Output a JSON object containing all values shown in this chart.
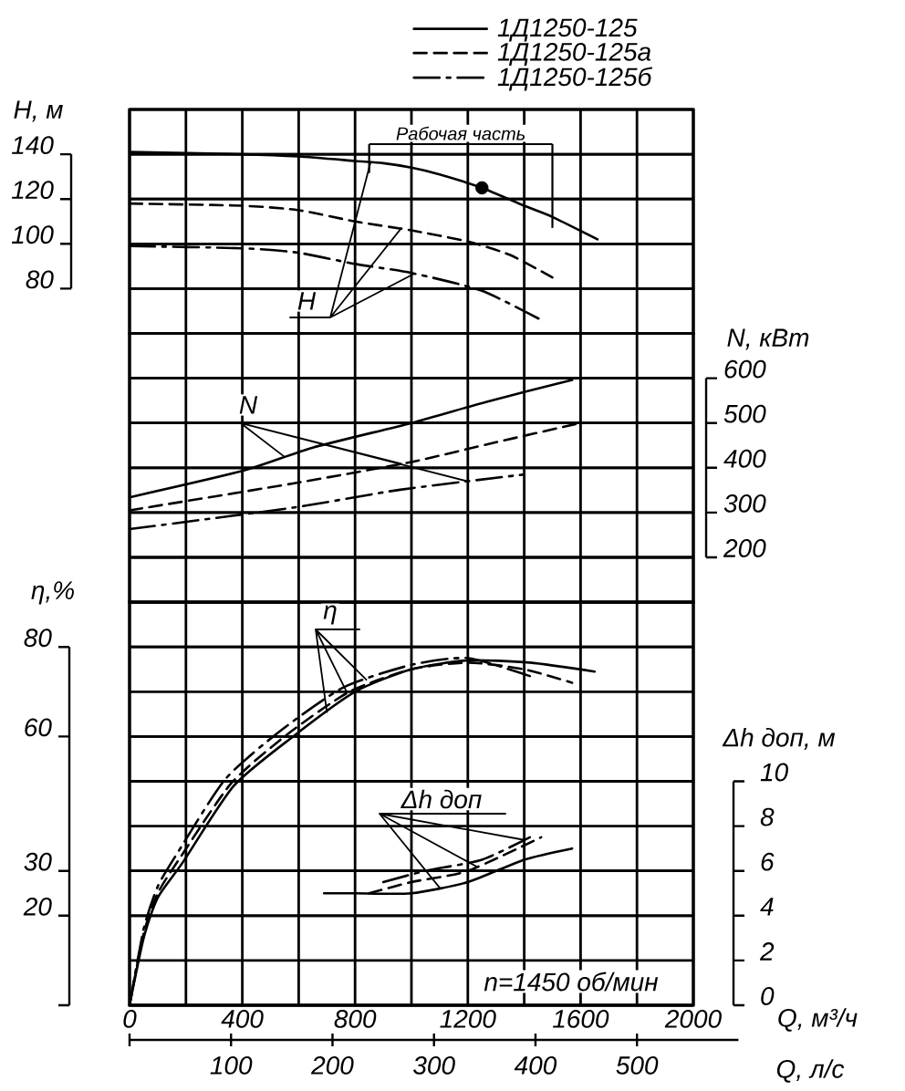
{
  "chart_data": [
    {
      "type": "line",
      "ylabel": "H, м",
      "xlim": [
        0,
        2000
      ],
      "xticks": [
        0,
        {
          "value": 200,
          "label": null
        },
        400,
        {
          "value": 600,
          "label": null
        },
        800,
        {
          "value": 1000,
          "label": null
        },
        1200,
        {
          "value": 1400,
          "label": null
        },
        1600,
        {
          "value": 1800,
          "label": null
        },
        2000
      ],
      "ylim": [
        60,
        160
      ],
      "yticks": [
        80,
        100,
        120,
        140
      ],
      "grid": true,
      "legend": "top",
      "tick_labels": "y",
      "series": [
        {
          "name": "1Д1250-125",
          "color": "#000000",
          "line_style": "solid",
          "x": [
            0,
            400,
            600,
            800,
            900,
            1000,
            1100,
            1250,
            1400,
            1500,
            1660
          ],
          "values": [
            141,
            140,
            139,
            137,
            136,
            134,
            131,
            125,
            117,
            112,
            102
          ]
        },
        {
          "name": "1Д1250-125а",
          "color": "#000000",
          "line_style": "dashed",
          "x": [
            0,
            400,
            600,
            800,
            1000,
            1200,
            1350,
            1500
          ],
          "values": [
            118,
            117,
            115,
            110,
            106,
            101,
            95,
            85
          ]
        },
        {
          "name": "1Д1250-125б",
          "color": "#000000",
          "line_style": "dashdot",
          "x": [
            0,
            400,
            600,
            800,
            1000,
            1250,
            1460
          ],
          "values": [
            99,
            98,
            96,
            91,
            87,
            79,
            66
          ]
        },
        {
          "type": "scatter",
          "marker": "circle",
          "color": "#000000",
          "x": [
            1250
          ],
          "values": [
            125
          ]
        }
      ],
      "ref_lines": [
        {
          "axis": "x",
          "value": 850
        },
        {
          "axis": "x",
          "value": 1500
        }
      ],
      "annotations": [
        "Рабочая часть",
        {
          "text": "H",
          "x": 964,
          "y": 107
        }
      ]
    },
    {
      "type": "line",
      "ylabel": "N, кВт",
      "xlim": [
        0,
        2000
      ],
      "xticks": [
        0,
        {
          "value": 200,
          "label": null
        },
        400,
        {
          "value": 600,
          "label": null
        },
        800,
        {
          "value": 1000,
          "label": null
        },
        1200,
        {
          "value": 1400,
          "label": null
        },
        1600,
        {
          "value": 1800,
          "label": null
        },
        2000
      ],
      "ylim": [
        100,
        700
      ],
      "yticks": [
        200,
        300,
        400,
        500,
        600
      ],
      "grid": true,
      "tick_labels": "y",
      "series": [
        {
          "color": "#000000",
          "line_style": "solid",
          "x": [
            0,
            400,
            650,
            1000,
            1270,
            1570
          ],
          "values": [
            334,
            393,
            445,
            500,
            548,
            596
          ]
        },
        {
          "color": "#000000",
          "line_style": "dashed",
          "x": [
            0,
            580,
            1000,
            1300,
            1600
          ],
          "values": [
            305,
            365,
            413,
            457,
            500
          ]
        },
        {
          "color": "#000000",
          "line_style": "dashdot",
          "x": [
            0,
            580,
            960,
            1400
          ],
          "values": [
            263,
            311,
            351,
            385
          ]
        }
      ],
      "annotations": [
        {
          "text": "N",
          "x": 964,
          "y": 409
        }
      ]
    },
    {
      "type": "line",
      "xlabel": "Q, м³/ч",
      "x2label": "Q, л/с",
      "ylabel": "η,%",
      "y2label": "Δh доп, м",
      "xlim": [
        0,
        2000
      ],
      "xticks": [
        0,
        {
          "value": 200,
          "label": null
        },
        400,
        {
          "value": 600,
          "label": null
        },
        800,
        {
          "value": 1000,
          "label": null
        },
        1200,
        {
          "value": 1400,
          "label": null
        },
        1600,
        {
          "value": 1800,
          "label": null
        },
        2000
      ],
      "x2lim": [
        0,
        600
      ],
      "x2ticks": [
        {
          "value": 0,
          "label": null
        },
        100,
        200,
        300,
        400,
        500
      ],
      "ylim": [
        0,
        90
      ],
      "yticks": [
        {
          "value": 0,
          "label": null
        },
        20,
        30,
        60,
        80
      ],
      "y2lim": [
        0,
        18
      ],
      "y2ticks": [
        0,
        2,
        4,
        6,
        8,
        10
      ],
      "grid": true,
      "series": [
        {
          "color": "#000000",
          "line_style": "solid",
          "x": [
            0,
            50,
            100,
            190,
            370,
            580,
            800,
            1000,
            1200,
            1420,
            1650
          ],
          "values": [
            0,
            15,
            24,
            32,
            49,
            60,
            70,
            75,
            77,
            76.5,
            74.5
          ]
        },
        {
          "color": "#000000",
          "line_style": "dashed",
          "x": [
            0,
            50,
            100,
            180,
            360,
            560,
            780,
            1000,
            1200,
            1400,
            1570
          ],
          "values": [
            0,
            16,
            25,
            33,
            49.5,
            60.5,
            70,
            75,
            76.5,
            75,
            72
          ]
        },
        {
          "color": "#000000",
          "line_style": "dashdot",
          "x": [
            0,
            50,
            100,
            170,
            340,
            540,
            760,
            1000,
            1200,
            1420
          ],
          "values": [
            0,
            17,
            26.5,
            34,
            50.5,
            61.5,
            71,
            76,
            77.5,
            73.5
          ]
        },
        {
          "color": "#000000",
          "line_style": "solid",
          "axis": "y2",
          "x": [
            690,
            800,
            1000,
            1200,
            1400,
            1570
          ],
          "values": [
            5,
            5,
            5,
            5.5,
            6.5,
            7
          ]
        },
        {
          "color": "#000000",
          "line_style": "dashed",
          "axis": "y2",
          "x": [
            850,
            1000,
            1200,
            1460
          ],
          "values": [
            5,
            5.5,
            6,
            7.5
          ]
        },
        {
          "color": "#000000",
          "line_style": "dashdot",
          "axis": "y2",
          "x": [
            900,
            1050,
            1250,
            1420
          ],
          "values": [
            5.5,
            6,
            6.5,
            7.5
          ]
        }
      ],
      "annotations": [
        {
          "text": "η",
          "x": 770,
          "y": 70
        },
        {
          "text": "Δh доп",
          "x": 1230,
          "y": 31
        },
        "n=1450 об/мин"
      ]
    }
  ]
}
